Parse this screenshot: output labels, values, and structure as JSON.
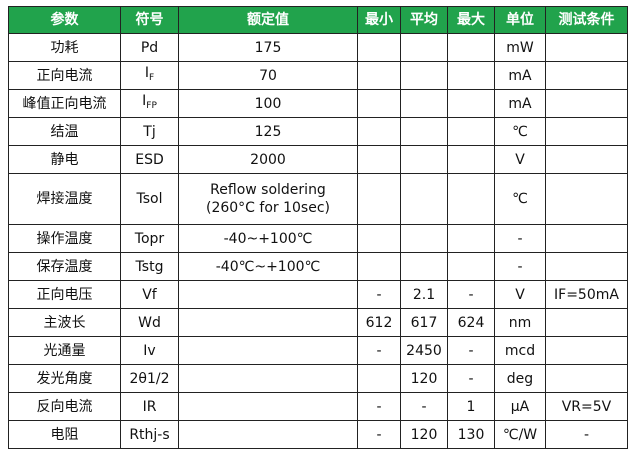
{
  "header_color": "#21a34c",
  "headers": [
    "参数",
    "符号",
    "额定值",
    "最小",
    "平均",
    "最大",
    "单位",
    "测试条件"
  ],
  "rows": [
    {
      "param": "功耗",
      "symbol": "Pd",
      "symbol_sub": "",
      "rated": "175",
      "rated2": "",
      "min": "",
      "avg": "",
      "max": "",
      "unit": "mW",
      "cond": ""
    },
    {
      "param": "正向电流",
      "symbol": "I",
      "symbol_sub": "F",
      "rated": "70",
      "rated2": "",
      "min": "",
      "avg": "",
      "max": "",
      "unit": "mA",
      "cond": ""
    },
    {
      "param": "峰值正向电流",
      "symbol": "I",
      "symbol_sub": "FP",
      "rated": "100",
      "rated2": "",
      "min": "",
      "avg": "",
      "max": "",
      "unit": "mA",
      "cond": ""
    },
    {
      "param": "结温",
      "symbol": "Tj",
      "symbol_sub": "",
      "rated": "125",
      "rated2": "",
      "min": "",
      "avg": "",
      "max": "",
      "unit": "℃",
      "cond": ""
    },
    {
      "param": "静电",
      "symbol": "ESD",
      "symbol_sub": "",
      "rated": "2000",
      "rated2": "",
      "min": "",
      "avg": "",
      "max": "",
      "unit": "V",
      "cond": ""
    },
    {
      "param": "焊接温度",
      "symbol": "Tsol",
      "symbol_sub": "",
      "rated": "Reflow soldering",
      "rated2": "(260°C for 10sec)",
      "min": "",
      "avg": "",
      "max": "",
      "unit": "℃",
      "cond": ""
    },
    {
      "param": "操作温度",
      "symbol": "Topr",
      "symbol_sub": "",
      "rated": "-40~+100℃",
      "rated2": "",
      "min": "",
      "avg": "",
      "max": "",
      "unit": "-",
      "cond": ""
    },
    {
      "param": "保存温度",
      "symbol": "Tstg",
      "symbol_sub": "",
      "rated": "-40℃~+100℃",
      "rated2": "",
      "min": "",
      "avg": "",
      "max": "",
      "unit": "-",
      "cond": ""
    },
    {
      "param": "正向电压",
      "symbol": "Vf",
      "symbol_sub": "",
      "rated": "",
      "rated2": "",
      "min": "-",
      "avg": "2.1",
      "max": "-",
      "unit": "V",
      "cond": "IF=50mA"
    },
    {
      "param": "主波长",
      "symbol": "Wd",
      "symbol_sub": "",
      "rated": "",
      "rated2": "",
      "min": "612",
      "avg": "617",
      "max": "624",
      "unit": "nm",
      "cond": ""
    },
    {
      "param": "光通量",
      "symbol": "Iv",
      "symbol_sub": "",
      "rated": "",
      "rated2": "",
      "min": "-",
      "avg": "2450",
      "max": "-",
      "unit": "mcd",
      "cond": ""
    },
    {
      "param": "发光角度",
      "symbol": "2θ1/2",
      "symbol_sub": "",
      "rated": "",
      "rated2": "",
      "min": "",
      "avg": "120",
      "max": "-",
      "unit": "deg",
      "cond": ""
    },
    {
      "param": "反向电流",
      "symbol": "IR",
      "symbol_sub": "",
      "rated": "",
      "rated2": "",
      "min": "-",
      "avg": "-",
      "max": "1",
      "unit": "μA",
      "cond": "VR=5V"
    },
    {
      "param": "电阻",
      "symbol": "Rthj-s",
      "symbol_sub": "",
      "rated": "",
      "rated2": "",
      "min": "-",
      "avg": "120",
      "max": "130",
      "unit": "℃/W",
      "cond": "-"
    }
  ]
}
